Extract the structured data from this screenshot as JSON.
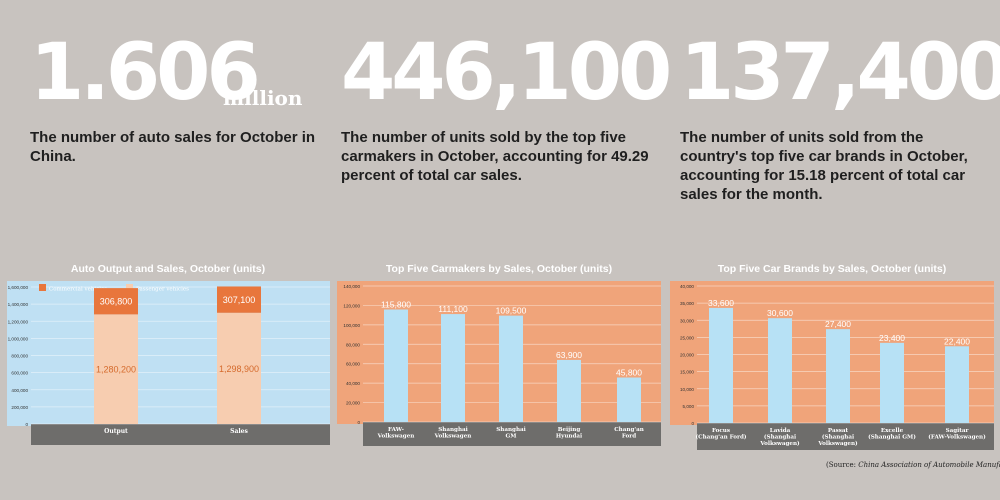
{
  "stats": [
    {
      "value": "1.606",
      "unit": "million",
      "lines": [
        "The number of auto sales for October in",
        "China."
      ]
    },
    {
      "value": "446,100",
      "lines": [
        "The number of units sold by the top five",
        "carmakers in October, accounting for 49.29",
        "percent of total car sales."
      ]
    },
    {
      "value": "137,400",
      "lines": [
        "The number of units sold from the",
        "country's top five car brands in October,",
        "accounting for 15.18 percent of total car",
        "sales for the month."
      ]
    }
  ],
  "colors": {
    "background": "#c8c3bf",
    "plot_blue": "#bfe0f3",
    "plot_orange": "#f0a47a",
    "commercial": "#e8763c",
    "passenger": "#f7cdb0",
    "bar_blue": "#b7e1f5",
    "axis_band": "#6e6d6b"
  },
  "source": {
    "label": "Source:",
    "text": "China Association of Automobile Manufacturers"
  },
  "chart_data": [
    {
      "type": "bar",
      "stacked": true,
      "title": "Auto Output and Sales, October (units)",
      "categories": [
        "Output",
        "Sales"
      ],
      "series": [
        {
          "name": "Passenger vehicles",
          "values": [
            1280200,
            1298900
          ],
          "labels": [
            "1,280,200",
            "1,298,900"
          ]
        },
        {
          "name": "Commercial vehicles",
          "values": [
            306800,
            307100
          ],
          "labels": [
            "306,800",
            "307,100"
          ]
        }
      ],
      "ylim": [
        0,
        1600000
      ],
      "yticks": [
        0,
        200000,
        400000,
        600000,
        800000,
        1000000,
        1200000,
        1400000,
        1600000
      ],
      "ytick_labels": [
        "0",
        "200,000",
        "400,000",
        "600,000",
        "800,000",
        "1,000,000",
        "1,200,000",
        "1,400,000",
        "1,600,000"
      ],
      "legend": "top-left",
      "legend_order": [
        "Commercial vehicles",
        "Passenger vehicles"
      ]
    },
    {
      "type": "bar",
      "title": "Top Five Carmakers by Sales, October (units)",
      "categories": [
        [
          "FAW-",
          "Volkswagen"
        ],
        [
          "Shanghai",
          "Volkswagen"
        ],
        [
          "Shanghai",
          "GM"
        ],
        [
          "Beijing",
          "Hyundai"
        ],
        [
          "Chang'an",
          "Ford"
        ]
      ],
      "values": [
        115800,
        111100,
        109500,
        63900,
        45800
      ],
      "labels": [
        "115,800",
        "111,100",
        "109,500",
        "63,900",
        "45,800"
      ],
      "ylim": [
        0,
        140000
      ],
      "yticks": [
        0,
        20000,
        40000,
        60000,
        80000,
        100000,
        120000,
        140000
      ],
      "ytick_labels": [
        "0",
        "20,000",
        "40,000",
        "60,000",
        "80,000",
        "100,000",
        "120,000",
        "140,000"
      ]
    },
    {
      "type": "bar",
      "title": "Top Five Car Brands by Sales, October (units)",
      "categories": [
        [
          "Focus",
          "(Chang'an Ford)"
        ],
        [
          "Lavida",
          "(Shanghai",
          "Volkswagen)"
        ],
        [
          "Passat",
          "(Shanghai",
          "Volkswagen)"
        ],
        [
          "Excelle",
          "(Shanghai GM)"
        ],
        [
          "Sagitar",
          "(FAW-Volkswagen)"
        ]
      ],
      "values": [
        33600,
        30600,
        27400,
        23400,
        22400
      ],
      "labels": [
        "33,600",
        "30,600",
        "27,400",
        "23,400",
        "22,400"
      ],
      "ylim": [
        0,
        40000
      ],
      "yticks": [
        0,
        5000,
        10000,
        15000,
        20000,
        25000,
        30000,
        35000,
        40000
      ],
      "ytick_labels": [
        "0",
        "5,000",
        "10,000",
        "15,000",
        "20,000",
        "25,000",
        "30,000",
        "35,000",
        "40,000"
      ]
    }
  ]
}
